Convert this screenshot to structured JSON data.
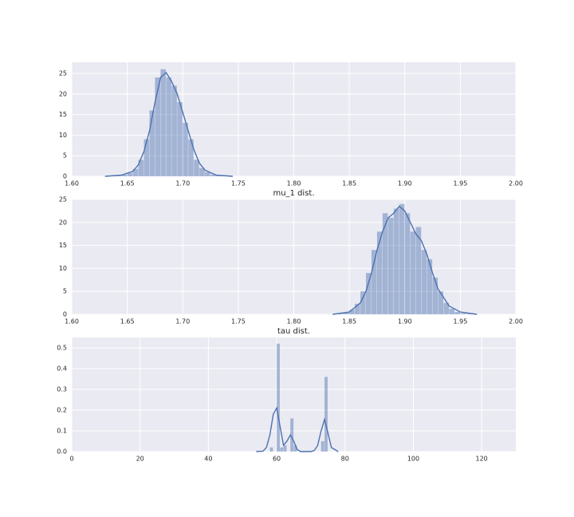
{
  "chart_data": [
    {
      "type": "histogram",
      "x_label": "mu_1 dist.",
      "bins": [
        1.63,
        1.635,
        1.64,
        1.645,
        1.65,
        1.655,
        1.66,
        1.665,
        1.67,
        1.675,
        1.68,
        1.685,
        1.69,
        1.695,
        1.7,
        1.705,
        1.71,
        1.715,
        1.72,
        1.725,
        1.73,
        1.735,
        1.74,
        1.745
      ],
      "counts": [
        0.05,
        0.1,
        0.2,
        0.4,
        0.8,
        1.8,
        4,
        9,
        16,
        24,
        26,
        24,
        22,
        18,
        13,
        9,
        4,
        2,
        1,
        0.4,
        0.2,
        0.1,
        0.05
      ],
      "kde": {
        "x": [
          1.63,
          1.645,
          1.655,
          1.66,
          1.665,
          1.67,
          1.675,
          1.68,
          1.685,
          1.69,
          1.695,
          1.7,
          1.705,
          1.71,
          1.715,
          1.72,
          1.73,
          1.745
        ],
        "y": [
          0,
          0.3,
          1.2,
          2.8,
          6,
          11,
          18,
          24,
          25.2,
          23,
          20,
          15.5,
          11,
          6.5,
          3.2,
          1.5,
          0.3,
          0
        ]
      },
      "color": "#4c72b0",
      "grid": true,
      "xlim": [
        1.6,
        2.0
      ],
      "ylim": [
        0,
        27.7
      ],
      "xticks": [
        {
          "value": 1.6,
          "label": "1.60"
        },
        {
          "value": 1.65,
          "label": "1.65"
        },
        {
          "value": 1.7,
          "label": "1.70"
        },
        {
          "value": 1.75,
          "label": "1.75"
        },
        {
          "value": 1.8,
          "label": "1.80"
        },
        {
          "value": 1.85,
          "label": "1.85"
        },
        {
          "value": 1.9,
          "label": "1.90"
        },
        {
          "value": 1.95,
          "label": "1.95"
        },
        {
          "value": 2.0,
          "label": "2.00"
        }
      ],
      "yticks": [
        0,
        5,
        10,
        15,
        20,
        25
      ]
    },
    {
      "type": "histogram",
      "x_label": "tau dist.",
      "bins": [
        1.835,
        1.84,
        1.845,
        1.85,
        1.855,
        1.86,
        1.865,
        1.87,
        1.875,
        1.88,
        1.885,
        1.89,
        1.895,
        1.9,
        1.905,
        1.91,
        1.915,
        1.92,
        1.925,
        1.93,
        1.935,
        1.94,
        1.945,
        1.95,
        1.955,
        1.96,
        1.965
      ],
      "counts": [
        0.05,
        0.15,
        0.4,
        1,
        2.3,
        5,
        9,
        14,
        18,
        22,
        21,
        23,
        24,
        22,
        18,
        19,
        14,
        12,
        8,
        5,
        2.5,
        1.2,
        0.5,
        0.2,
        0.1,
        0.03
      ],
      "kde": {
        "x": [
          1.835,
          1.85,
          1.86,
          1.865,
          1.87,
          1.875,
          1.88,
          1.885,
          1.89,
          1.895,
          1.9,
          1.905,
          1.91,
          1.915,
          1.92,
          1.925,
          1.93,
          1.94,
          1.95,
          1.965
        ],
        "y": [
          0,
          0.5,
          2.5,
          5,
          9,
          14,
          18,
          21,
          22,
          23.5,
          22.5,
          20,
          17.5,
          16,
          13,
          9,
          5.5,
          1.8,
          0.5,
          0
        ]
      },
      "color": "#4c72b0",
      "grid": true,
      "xlim": [
        1.6,
        2.0
      ],
      "ylim": [
        0,
        25
      ],
      "xticks": [
        {
          "value": 1.6,
          "label": "1.60"
        },
        {
          "value": 1.65,
          "label": "1.65"
        },
        {
          "value": 1.7,
          "label": "1.70"
        },
        {
          "value": 1.75,
          "label": "1.75"
        },
        {
          "value": 1.8,
          "label": "1.80"
        },
        {
          "value": 1.85,
          "label": "1.85"
        },
        {
          "value": 1.9,
          "label": "1.90"
        },
        {
          "value": 1.95,
          "label": "1.95"
        },
        {
          "value": 2.0,
          "label": "2.00"
        }
      ],
      "yticks": [
        0,
        5,
        10,
        15,
        20,
        25
      ]
    },
    {
      "type": "histogram",
      "bins": [
        58,
        59,
        60,
        61,
        62,
        63,
        64,
        65,
        66,
        67,
        68,
        69,
        70,
        71,
        72,
        73,
        74,
        75
      ],
      "counts": [
        0.02,
        0,
        0.52,
        0.02,
        0.03,
        0,
        0.16,
        0.03,
        0,
        0,
        0,
        0,
        0,
        0,
        0,
        0.05,
        0.36
      ],
      "kde": {
        "x": [
          54,
          56,
          57,
          58,
          59,
          60,
          61,
          62,
          63,
          64,
          65,
          66,
          67,
          68,
          70,
          71,
          72,
          73,
          74,
          75,
          76,
          78
        ],
        "y": [
          0,
          0.002,
          0.02,
          0.08,
          0.18,
          0.21,
          0.12,
          0.03,
          0.05,
          0.08,
          0.05,
          0.01,
          0,
          0,
          0,
          0.005,
          0.03,
          0.1,
          0.155,
          0.09,
          0.02,
          0
        ]
      },
      "color": "#4c72b0",
      "grid": true,
      "xlim": [
        0,
        130
      ],
      "ylim": [
        0,
        0.55
      ],
      "xticks": [
        0,
        20,
        40,
        60,
        80,
        100,
        120
      ],
      "yticks": [
        {
          "value": 0,
          "label": "0.0"
        },
        0.1,
        0.2,
        0.3,
        0.4,
        0.5
      ]
    }
  ]
}
